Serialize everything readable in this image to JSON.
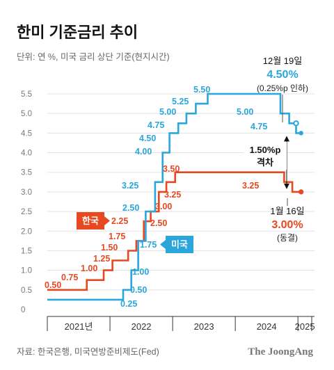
{
  "chart_data": {
    "type": "line",
    "title": "한미 기준금리 추이",
    "subtitle": "단위: 연 %, 미국 금리 상단 기준(현지시간)",
    "ylim": [
      0,
      5.5
    ],
    "y_ticks": [
      "0",
      "0.5",
      "1.0",
      "1.5",
      "2.0",
      "2.5",
      "3.0",
      "3.5",
      "4.0",
      "4.5",
      "5.0",
      "5.5"
    ],
    "x_labels": [
      "2021년",
      "2022",
      "2023",
      "2024",
      "2025"
    ],
    "series": [
      {
        "name": "한국",
        "color": "#e8481f",
        "steps": [
          {
            "x": 2021.0,
            "y": 0.5
          },
          {
            "x": 2021.63,
            "y": 0.75
          },
          {
            "x": 2021.9,
            "y": 1.0
          },
          {
            "x": 2022.04,
            "y": 1.25
          },
          {
            "x": 2022.29,
            "y": 1.5
          },
          {
            "x": 2022.42,
            "y": 1.75
          },
          {
            "x": 2022.54,
            "y": 2.25
          },
          {
            "x": 2022.65,
            "y": 2.5
          },
          {
            "x": 2022.78,
            "y": 3.0
          },
          {
            "x": 2022.9,
            "y": 3.25
          },
          {
            "x": 2023.04,
            "y": 3.5
          },
          {
            "x": 2024.78,
            "y": 3.25
          },
          {
            "x": 2024.91,
            "y": 3.0
          },
          {
            "x": 2025.05,
            "y": 3.0
          }
        ],
        "labels": [
          "0.50",
          "0.75",
          "1.00",
          "1.25",
          "1.50",
          "1.75",
          "2.25",
          "2.50",
          "3.00",
          "3.25",
          "3.50",
          "3.25"
        ]
      },
      {
        "name": "미국",
        "color": "#2aa6dc",
        "steps": [
          {
            "x": 2021.0,
            "y": 0.25
          },
          {
            "x": 2022.21,
            "y": 0.5
          },
          {
            "x": 2022.34,
            "y": 1.0
          },
          {
            "x": 2022.45,
            "y": 1.75
          },
          {
            "x": 2022.57,
            "y": 2.5
          },
          {
            "x": 2022.72,
            "y": 3.25
          },
          {
            "x": 2022.84,
            "y": 4.0
          },
          {
            "x": 2022.95,
            "y": 4.5
          },
          {
            "x": 2023.09,
            "y": 4.75
          },
          {
            "x": 2023.22,
            "y": 5.0
          },
          {
            "x": 2023.37,
            "y": 5.25
          },
          {
            "x": 2023.56,
            "y": 5.5
          },
          {
            "x": 2024.72,
            "y": 5.0
          },
          {
            "x": 2024.86,
            "y": 4.75
          },
          {
            "x": 2024.97,
            "y": 4.5
          },
          {
            "x": 2025.05,
            "y": 4.5
          }
        ],
        "labels": [
          "0.25",
          "0.50",
          "1.00",
          "1.75",
          "2.50",
          "3.25",
          "4.00",
          "4.50",
          "4.75",
          "5.00",
          "5.25",
          "5.50",
          "5.00",
          "4.75"
        ]
      }
    ],
    "annotations": {
      "us_date": "12월 19일",
      "us_rate": "4.50%",
      "us_note": "(0.25%p 인하)",
      "kr_date": "1월 16일",
      "kr_rate": "3.00%",
      "kr_note": "(동결)",
      "gap_value": "1.50%p",
      "gap_label": "격차"
    },
    "source": "자료: 한국은행, 미국연방준비제도(Fed)",
    "brand": "The JoongAng"
  }
}
